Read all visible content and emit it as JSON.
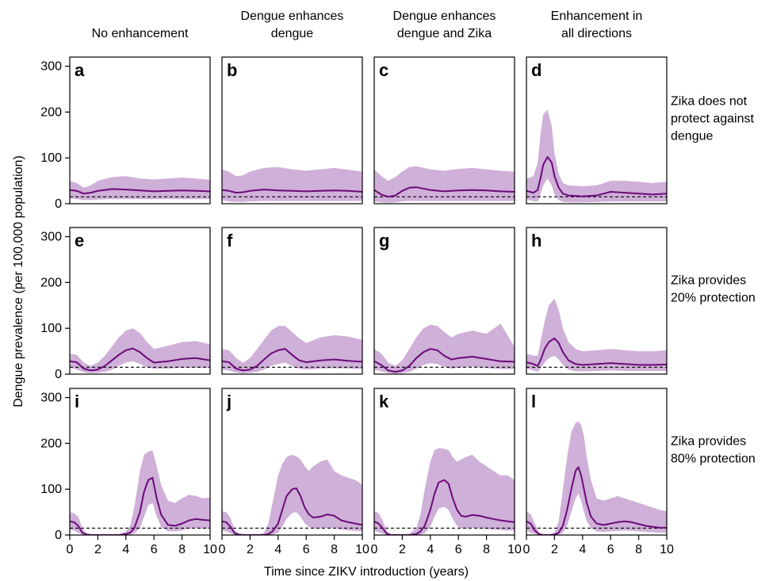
{
  "chart_data": {
    "type": "line",
    "xlabel": "Time since ZIKV introduction (years)",
    "ylabel": "Dengue prevalence (per 100,000 population)",
    "xlim": [
      0,
      10
    ],
    "ylim": [
      0,
      320
    ],
    "xticks": [
      0,
      2,
      4,
      6,
      8,
      10
    ],
    "yticks": [
      0,
      100,
      200,
      300
    ],
    "baseline_dashed": 15,
    "colors": {
      "band": "#cfb0d8",
      "median": "#6b0a7a"
    },
    "column_headers": [
      [
        "No enhancement"
      ],
      [
        "Dengue enhances",
        "dengue"
      ],
      [
        "Dengue enhances",
        "dengue and Zika"
      ],
      [
        "Enhancement in",
        "all directions"
      ]
    ],
    "row_labels": [
      [
        "Zika does not",
        "protect against",
        "dengue"
      ],
      [
        "Zika provides",
        "20% protection"
      ],
      [
        "Zika provides",
        "80% protection"
      ]
    ],
    "panels": [
      {
        "letter": "a",
        "x": [
          0,
          0.5,
          1,
          1.5,
          2,
          3,
          4,
          5,
          6,
          7,
          8,
          9,
          10
        ],
        "median": [
          30,
          28,
          22,
          24,
          28,
          32,
          31,
          29,
          27,
          28,
          29,
          28,
          27
        ],
        "lower": [
          12,
          10,
          8,
          8,
          9,
          10,
          10,
          10,
          10,
          10,
          10,
          10,
          10
        ],
        "upper": [
          50,
          45,
          35,
          40,
          50,
          58,
          60,
          55,
          53,
          55,
          57,
          55,
          52
        ]
      },
      {
        "letter": "b",
        "x": [
          0,
          0.5,
          1,
          1.5,
          2,
          3,
          4,
          5,
          6,
          7,
          8,
          9,
          10
        ],
        "median": [
          30,
          28,
          24,
          25,
          28,
          31,
          29,
          28,
          27,
          28,
          29,
          28,
          26
        ],
        "lower": [
          8,
          5,
          4,
          4,
          5,
          6,
          6,
          6,
          6,
          6,
          6,
          6,
          6
        ],
        "upper": [
          75,
          70,
          60,
          62,
          70,
          78,
          80,
          75,
          72,
          75,
          78,
          74,
          70
        ]
      },
      {
        "letter": "c",
        "x": [
          0,
          0.5,
          1,
          1.5,
          2,
          2.5,
          3,
          4,
          5,
          6,
          7,
          8,
          9,
          10
        ],
        "median": [
          30,
          20,
          15,
          18,
          28,
          35,
          36,
          30,
          27,
          29,
          30,
          29,
          27,
          26
        ],
        "lower": [
          5,
          3,
          2,
          3,
          5,
          6,
          6,
          6,
          6,
          6,
          6,
          6,
          6,
          6
        ],
        "upper": [
          75,
          60,
          50,
          58,
          70,
          80,
          82,
          75,
          72,
          76,
          78,
          75,
          72,
          70
        ]
      },
      {
        "letter": "d",
        "x": [
          0,
          0.5,
          0.8,
          1,
          1.2,
          1.5,
          1.8,
          2,
          2.3,
          2.6,
          3,
          4,
          5,
          6,
          7,
          8,
          9,
          10
        ],
        "median": [
          28,
          24,
          30,
          55,
          85,
          102,
          90,
          60,
          35,
          22,
          18,
          16,
          18,
          26,
          24,
          22,
          20,
          22
        ],
        "lower": [
          10,
          5,
          5,
          20,
          40,
          55,
          40,
          20,
          8,
          4,
          3,
          3,
          4,
          5,
          5,
          5,
          5,
          5
        ],
        "upper": [
          55,
          60,
          90,
          150,
          195,
          205,
          170,
          110,
          65,
          45,
          40,
          38,
          40,
          50,
          50,
          48,
          45,
          48
        ]
      },
      {
        "letter": "e",
        "x": [
          0,
          0.5,
          1,
          1.5,
          2,
          2.5,
          3,
          3.5,
          4,
          4.5,
          5,
          5.5,
          6,
          7,
          8,
          9,
          10
        ],
        "median": [
          28,
          26,
          12,
          8,
          10,
          18,
          30,
          42,
          52,
          56,
          48,
          35,
          25,
          28,
          33,
          35,
          30
        ],
        "lower": [
          14,
          10,
          4,
          2,
          3,
          5,
          10,
          18,
          25,
          28,
          22,
          15,
          12,
          12,
          14,
          14,
          13
        ],
        "upper": [
          45,
          42,
          25,
          18,
          25,
          40,
          60,
          80,
          95,
          100,
          90,
          70,
          55,
          62,
          70,
          72,
          65
        ]
      },
      {
        "letter": "f",
        "x": [
          0,
          0.5,
          1,
          1.5,
          2,
          2.5,
          3,
          3.5,
          4,
          4.5,
          5,
          5.5,
          6,
          7,
          8,
          9,
          10
        ],
        "median": [
          28,
          26,
          12,
          8,
          10,
          18,
          32,
          45,
          52,
          55,
          42,
          30,
          26,
          30,
          32,
          29,
          27
        ],
        "lower": [
          10,
          8,
          3,
          2,
          3,
          5,
          10,
          18,
          22,
          25,
          18,
          12,
          10,
          12,
          13,
          12,
          11
        ],
        "upper": [
          55,
          52,
          35,
          25,
          35,
          55,
          75,
          95,
          105,
          105,
          92,
          78,
          68,
          80,
          85,
          82,
          75
        ]
      },
      {
        "letter": "g",
        "x": [
          0,
          0.5,
          1,
          1.5,
          2,
          2.5,
          3,
          3.5,
          4,
          4.5,
          5,
          5.5,
          6,
          7,
          8,
          9,
          10
        ],
        "median": [
          28,
          20,
          8,
          5,
          8,
          18,
          35,
          48,
          55,
          52,
          40,
          32,
          35,
          38,
          33,
          28,
          27
        ],
        "lower": [
          10,
          6,
          2,
          1,
          2,
          5,
          12,
          20,
          24,
          22,
          16,
          12,
          14,
          16,
          13,
          11,
          11
        ],
        "upper": [
          55,
          45,
          25,
          18,
          30,
          55,
          80,
          100,
          108,
          105,
          92,
          80,
          88,
          95,
          88,
          110,
          60
        ]
      },
      {
        "letter": "h",
        "x": [
          0,
          0.5,
          0.8,
          1,
          1.3,
          1.6,
          2,
          2.3,
          2.6,
          3,
          3.5,
          4,
          5,
          6,
          7,
          8,
          9,
          10
        ],
        "median": [
          26,
          22,
          18,
          30,
          55,
          70,
          78,
          68,
          48,
          30,
          22,
          20,
          22,
          24,
          22,
          20,
          20,
          21
        ],
        "lower": [
          12,
          8,
          5,
          12,
          25,
          35,
          40,
          32,
          20,
          10,
          6,
          6,
          7,
          8,
          7,
          7,
          7,
          7
        ],
        "upper": [
          45,
          40,
          40,
          70,
          115,
          150,
          165,
          140,
          100,
          70,
          55,
          50,
          52,
          55,
          52,
          50,
          50,
          52
        ]
      },
      {
        "letter": "i",
        "x": [
          0,
          0.3,
          0.6,
          0.9,
          1.2,
          1.6,
          2,
          2.5,
          3,
          3.5,
          4,
          4.3,
          4.6,
          5,
          5.3,
          5.6,
          5.9,
          6.2,
          6.5,
          7,
          7.5,
          8,
          8.5,
          9,
          9.5,
          10
        ],
        "median": [
          30,
          28,
          20,
          5,
          1,
          0,
          0,
          0,
          0,
          0,
          2,
          5,
          15,
          50,
          95,
          120,
          125,
          80,
          45,
          22,
          20,
          25,
          32,
          35,
          33,
          32
        ],
        "lower": [
          12,
          10,
          5,
          1,
          0,
          0,
          0,
          0,
          0,
          0,
          0,
          1,
          3,
          15,
          40,
          65,
          70,
          40,
          18,
          8,
          8,
          10,
          14,
          15,
          14,
          13
        ],
        "upper": [
          50,
          48,
          40,
          15,
          3,
          0,
          0,
          0,
          0,
          1,
          8,
          20,
          60,
          140,
          175,
          182,
          185,
          150,
          110,
          75,
          70,
          80,
          88,
          85,
          80,
          82
        ]
      },
      {
        "letter": "j",
        "x": [
          0,
          0.3,
          0.6,
          0.9,
          1.2,
          1.6,
          2,
          2.5,
          3,
          3.3,
          3.6,
          4,
          4.3,
          4.6,
          5,
          5.3,
          5.6,
          5.9,
          6.2,
          6.5,
          7,
          7.5,
          8,
          8.5,
          9,
          9.5,
          10
        ],
        "median": [
          30,
          28,
          18,
          4,
          1,
          0,
          0,
          0,
          0,
          2,
          8,
          25,
          55,
          85,
          100,
          102,
          85,
          60,
          45,
          38,
          40,
          45,
          42,
          32,
          28,
          25,
          22
        ],
        "lower": [
          10,
          8,
          4,
          1,
          0,
          0,
          0,
          0,
          0,
          0,
          1,
          5,
          18,
          35,
          48,
          50,
          40,
          25,
          18,
          14,
          14,
          16,
          15,
          12,
          10,
          9,
          8
        ],
        "upper": [
          52,
          50,
          38,
          12,
          3,
          0,
          0,
          1,
          5,
          25,
          70,
          130,
          155,
          170,
          175,
          172,
          165,
          150,
          140,
          150,
          160,
          165,
          140,
          130,
          125,
          120,
          110
        ]
      },
      {
        "letter": "k",
        "x": [
          0,
          0.3,
          0.6,
          0.9,
          1.2,
          1.6,
          2,
          2.5,
          3,
          3.3,
          3.6,
          4,
          4.3,
          4.6,
          5,
          5.3,
          5.6,
          5.9,
          6.2,
          6.5,
          7,
          7.5,
          8,
          8.5,
          9,
          9.5,
          10
        ],
        "median": [
          30,
          25,
          15,
          3,
          0,
          0,
          0,
          0,
          2,
          8,
          20,
          55,
          90,
          115,
          120,
          112,
          80,
          55,
          42,
          40,
          44,
          42,
          38,
          35,
          32,
          30,
          28
        ],
        "lower": [
          10,
          6,
          3,
          0,
          0,
          0,
          0,
          0,
          0,
          1,
          4,
          18,
          40,
          58,
          62,
          55,
          35,
          20,
          15,
          14,
          15,
          14,
          13,
          12,
          11,
          10,
          10
        ],
        "upper": [
          52,
          48,
          32,
          8,
          1,
          0,
          0,
          2,
          15,
          45,
          100,
          160,
          185,
          190,
          188,
          185,
          170,
          160,
          165,
          170,
          175,
          160,
          150,
          140,
          130,
          130,
          120
        ]
      },
      {
        "letter": "l",
        "x": [
          0,
          0.3,
          0.6,
          0.9,
          1.2,
          1.6,
          2,
          2.3,
          2.6,
          2.9,
          3.2,
          3.5,
          3.7,
          3.9,
          4.1,
          4.3,
          4.6,
          5,
          5.5,
          6,
          6.5,
          7,
          7.5,
          8,
          8.5,
          9,
          9.5,
          10
        ],
        "median": [
          30,
          25,
          10,
          2,
          0,
          0,
          1,
          5,
          20,
          55,
          100,
          140,
          148,
          130,
          100,
          70,
          40,
          25,
          22,
          25,
          28,
          30,
          28,
          24,
          20,
          18,
          16,
          16
        ],
        "lower": [
          10,
          5,
          2,
          0,
          0,
          0,
          0,
          1,
          5,
          20,
          50,
          80,
          90,
          75,
          50,
          30,
          15,
          8,
          7,
          8,
          9,
          10,
          9,
          8,
          7,
          6,
          5,
          5
        ],
        "upper": [
          52,
          45,
          25,
          5,
          1,
          0,
          5,
          30,
          100,
          170,
          225,
          245,
          248,
          240,
          215,
          170,
          120,
          80,
          75,
          80,
          85,
          80,
          75,
          70,
          65,
          60,
          55,
          52
        ]
      }
    ]
  }
}
